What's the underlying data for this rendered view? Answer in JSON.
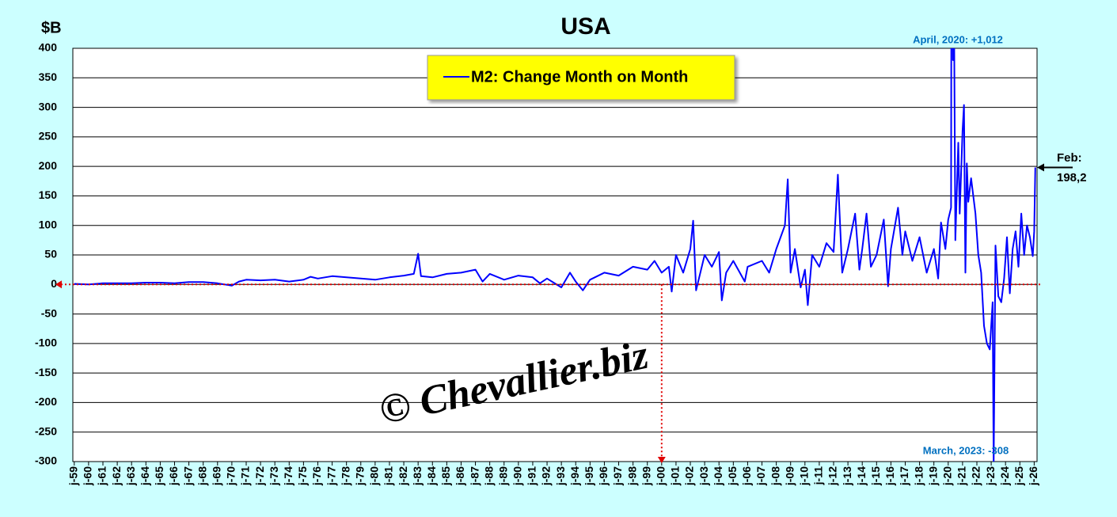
{
  "chart_data": {
    "type": "line",
    "title": "USA",
    "y_label": "$B",
    "watermark": "© Chevallier.biz",
    "annotations": [
      "April, 2020: +1,012",
      "March, 2023: -308",
      "Feb:",
      "198,2"
    ],
    "ylim": [
      -300,
      400
    ],
    "yticks": [
      -300,
      -250,
      -200,
      -150,
      -100,
      -50,
      0,
      50,
      100,
      150,
      200,
      250,
      300,
      350,
      400
    ],
    "xlim": [
      1958.9,
      2026.2
    ],
    "xticks": [
      {
        "value": 1959,
        "label": "j-59"
      },
      {
        "value": 1960,
        "label": "j-60"
      },
      {
        "value": 1961,
        "label": "j-61"
      },
      {
        "value": 1962,
        "label": "j-62"
      },
      {
        "value": 1963,
        "label": "j-63"
      },
      {
        "value": 1964,
        "label": "j-64"
      },
      {
        "value": 1965,
        "label": "j-65"
      },
      {
        "value": 1966,
        "label": "j-66"
      },
      {
        "value": 1967,
        "label": "j-67"
      },
      {
        "value": 1968,
        "label": "j-68"
      },
      {
        "value": 1969,
        "label": "j-69"
      },
      {
        "value": 1970,
        "label": "j-70"
      },
      {
        "value": 1971,
        "label": "j-71"
      },
      {
        "value": 1972,
        "label": "j-72"
      },
      {
        "value": 1973,
        "label": "j-73"
      },
      {
        "value": 1974,
        "label": "j-74"
      },
      {
        "value": 1975,
        "label": "j-75"
      },
      {
        "value": 1976,
        "label": "j-76"
      },
      {
        "value": 1977,
        "label": "j-77"
      },
      {
        "value": 1978,
        "label": "j-78"
      },
      {
        "value": 1979,
        "label": "j-79"
      },
      {
        "value": 1980,
        "label": "j-80"
      },
      {
        "value": 1981,
        "label": "j-81"
      },
      {
        "value": 1982,
        "label": "j-82"
      },
      {
        "value": 1983,
        "label": "j-83"
      },
      {
        "value": 1984,
        "label": "j-84"
      },
      {
        "value": 1985,
        "label": "j-85"
      },
      {
        "value": 1986,
        "label": "j-86"
      },
      {
        "value": 1987,
        "label": "j-87"
      },
      {
        "value": 1988,
        "label": "j-88"
      },
      {
        "value": 1989,
        "label": "j-89"
      },
      {
        "value": 1990,
        "label": "j-90"
      },
      {
        "value": 1991,
        "label": "j-91"
      },
      {
        "value": 1992,
        "label": "j-92"
      },
      {
        "value": 1993,
        "label": "j-93"
      },
      {
        "value": 1994,
        "label": "j-94"
      },
      {
        "value": 1995,
        "label": "j-95"
      },
      {
        "value": 1996,
        "label": "j-96"
      },
      {
        "value": 1997,
        "label": "j-97"
      },
      {
        "value": 1998,
        "label": "j-98"
      },
      {
        "value": 1999,
        "label": "j-99"
      },
      {
        "value": 2000,
        "label": "j-00"
      },
      {
        "value": 2001,
        "label": "j-01"
      },
      {
        "value": 2002,
        "label": "j-02"
      },
      {
        "value": 2003,
        "label": "j-03"
      },
      {
        "value": 2004,
        "label": "j-04"
      },
      {
        "value": 2005,
        "label": "j-05"
      },
      {
        "value": 2006,
        "label": "j-06"
      },
      {
        "value": 2007,
        "label": "j-07"
      },
      {
        "value": 2008,
        "label": "j-08"
      },
      {
        "value": 2009,
        "label": "j-09"
      },
      {
        "value": 2010,
        "label": "j-10"
      },
      {
        "value": 2011,
        "label": "j-11"
      },
      {
        "value": 2012,
        "label": "j-12"
      },
      {
        "value": 2013,
        "label": "j-13"
      },
      {
        "value": 2014,
        "label": "j-14"
      },
      {
        "value": 2015,
        "label": "j-15"
      },
      {
        "value": 2016,
        "label": "j-16"
      },
      {
        "value": 2017,
        "label": "j-17"
      },
      {
        "value": 2018,
        "label": "j-18"
      },
      {
        "value": 2019,
        "label": "j-19"
      },
      {
        "value": 2020,
        "label": "j-20"
      },
      {
        "value": 2021,
        "label": "j-21"
      },
      {
        "value": 2022,
        "label": "j-22"
      },
      {
        "value": 2023,
        "label": "j-23"
      },
      {
        "value": 2024,
        "label": "j-24"
      },
      {
        "value": 2025,
        "label": "j-25"
      },
      {
        "value": 2026,
        "label": "j-26"
      }
    ],
    "grid": true,
    "x": [
      1959,
      1960,
      1961,
      1962,
      1963,
      1964,
      1965,
      1966,
      1967,
      1968,
      1969,
      1970,
      1970.5,
      1971,
      1972,
      1973,
      1974,
      1975,
      1975.5,
      1976,
      1977,
      1978,
      1979,
      1980,
      1981,
      1982,
      1982.7,
      1983,
      1983.2,
      1984,
      1985,
      1986,
      1987,
      1987.5,
      1988,
      1989,
      1990,
      1991,
      1991.5,
      1992,
      1993,
      1993.6,
      1994,
      1994.5,
      1995,
      1996,
      1997,
      1998,
      1999,
      1999.5,
      2000,
      2000.5,
      2000.7,
      2001,
      2001.5,
      2002,
      2002.2,
      2002.4,
      2003,
      2003.5,
      2004,
      2004.2,
      2004.5,
      2005,
      2005.8,
      2006,
      2007,
      2007.5,
      2008,
      2008.6,
      2008.8,
      2009,
      2009.3,
      2009.7,
      2010,
      2010.2,
      2010.5,
      2011,
      2011.5,
      2012,
      2012.3,
      2012.6,
      2013,
      2013.5,
      2013.8,
      2014,
      2014.3,
      2014.6,
      2015,
      2015.5,
      2015.8,
      2016,
      2016.5,
      2016.8,
      2017,
      2017.5,
      2018,
      2018.5,
      2019,
      2019.3,
      2019.5,
      2019.8,
      2020,
      2020.2,
      2020.25,
      2020.33,
      2020.42,
      2020.5,
      2020.7,
      2020.8,
      2021,
      2021.1,
      2021.2,
      2021.3,
      2021.4,
      2021.6,
      2021.9,
      2022.1,
      2022.3,
      2022.5,
      2022.7,
      2022.9,
      2023.1,
      2023.17,
      2023.3,
      2023.5,
      2023.7,
      2023.9,
      2024.1,
      2024.3,
      2024.5,
      2024.7,
      2024.9,
      2025.1,
      2025.3,
      2025.5,
      2025.7,
      2025.9,
      2026,
      2026.08
    ],
    "series": [
      {
        "name": "M2: Change Month on Month",
        "color": "#0000ff",
        "values": [
          1,
          0,
          2,
          2,
          2,
          3,
          3,
          2,
          4,
          4,
          2,
          -2,
          5,
          8,
          7,
          8,
          5,
          8,
          13,
          10,
          14,
          12,
          10,
          8,
          12,
          15,
          18,
          52,
          14,
          12,
          18,
          20,
          25,
          5,
          18,
          8,
          15,
          12,
          2,
          10,
          -5,
          20,
          5,
          -10,
          8,
          20,
          15,
          30,
          25,
          40,
          20,
          30,
          -12,
          50,
          20,
          60,
          108,
          -10,
          50,
          30,
          55,
          -27,
          20,
          40,
          5,
          30,
          40,
          20,
          60,
          100,
          178,
          20,
          60,
          -5,
          25,
          -35,
          50,
          30,
          70,
          55,
          186,
          20,
          60,
          120,
          25,
          60,
          120,
          30,
          50,
          110,
          -3,
          60,
          130,
          50,
          90,
          40,
          80,
          20,
          60,
          10,
          105,
          60,
          110,
          130,
          1012,
          380,
          400,
          75,
          240,
          120,
          260,
          304,
          20,
          205,
          140,
          180,
          120,
          50,
          20,
          -70,
          -100,
          -110,
          -30,
          -308,
          66,
          -20,
          -30,
          10,
          80,
          -15,
          60,
          90,
          30,
          120,
          50,
          100,
          80,
          48,
          90,
          198.2
        ]
      }
    ]
  }
}
